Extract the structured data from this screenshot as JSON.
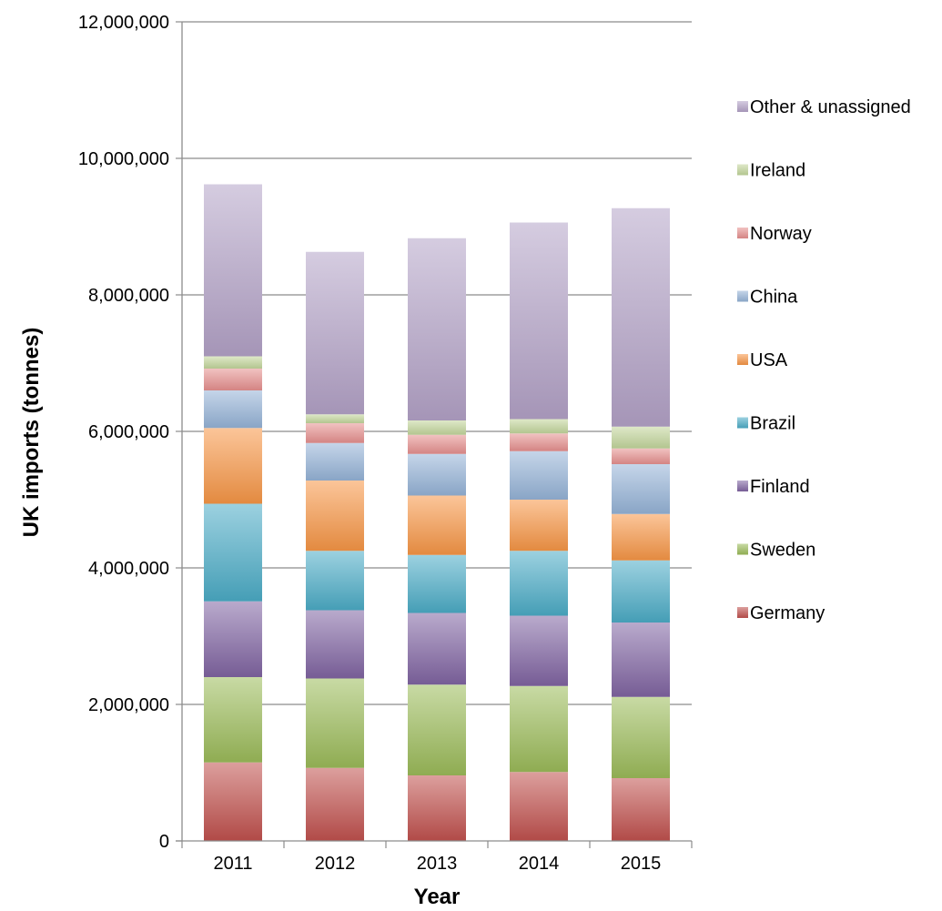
{
  "chart_data": {
    "type": "bar",
    "stacked": true,
    "title": "",
    "xlabel": "Year",
    "ylabel": "UK imports (tonnes)",
    "ylim": [
      0,
      12000000
    ],
    "y_tick_step": 2000000,
    "y_tick_labels": [
      "0",
      "2,000,000",
      "4,000,000",
      "6,000,000",
      "8,000,000",
      "10,000,000",
      "12,000,000"
    ],
    "grid": true,
    "legend_position": "right",
    "categories": [
      "2011",
      "2012",
      "2013",
      "2014",
      "2015"
    ],
    "series": [
      {
        "name": "Germany",
        "color": "#c0504d",
        "values": [
          1150000,
          1070000,
          960000,
          1010000,
          920000
        ]
      },
      {
        "name": "Sweden",
        "color": "#9bbb59",
        "values": [
          1250000,
          1310000,
          1330000,
          1260000,
          1190000
        ]
      },
      {
        "name": "Finland",
        "color": "#8064a2",
        "values": [
          1110000,
          1000000,
          1050000,
          1030000,
          1090000
        ]
      },
      {
        "name": "Brazil",
        "color": "#4bacc6",
        "values": [
          1430000,
          870000,
          850000,
          950000,
          910000
        ]
      },
      {
        "name": "USA",
        "color": "#f79646",
        "values": [
          1110000,
          1030000,
          870000,
          750000,
          680000
        ]
      },
      {
        "name": "China",
        "color": "#95b3d7",
        "values": [
          550000,
          550000,
          610000,
          710000,
          730000
        ]
      },
      {
        "name": "Norway",
        "color": "#e6908e",
        "values": [
          320000,
          290000,
          280000,
          260000,
          230000
        ]
      },
      {
        "name": "Ireland",
        "color": "#c3d69b",
        "values": [
          180000,
          130000,
          210000,
          210000,
          320000
        ]
      },
      {
        "name": "Other & unassigned",
        "color": "#b3a2c7",
        "values": [
          2520000,
          2380000,
          2670000,
          2880000,
          3200000
        ]
      }
    ]
  }
}
